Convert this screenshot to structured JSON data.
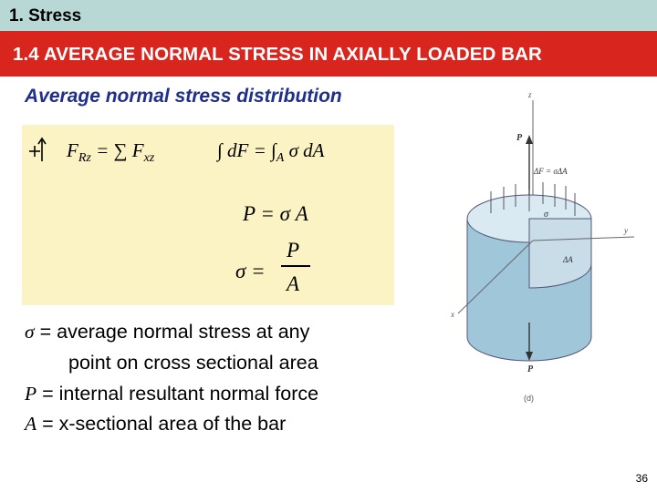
{
  "header": {
    "chapter": "1. Stress",
    "section": "1.4 AVERAGE NORMAL STRESS IN AXIALLY LOADED BAR"
  },
  "subtitle": "Average normal stress distribution",
  "equations": {
    "force_sum": "F",
    "force_sum_sub": "Rz",
    "force_sum_rhs": "= ∑ F",
    "force_sum_rhs_sub": "xz",
    "integral_lhs": "∫ dF = ∫",
    "integral_sub": "A",
    "integral_rhs": " σ dA",
    "p_eq": "P = σ A",
    "sigma_lhs": "σ =",
    "frac_num": "P",
    "frac_den": "A"
  },
  "definitions": {
    "sigma_sym": "σ",
    "sigma_text": " = average normal stress at any",
    "sigma_text2": "point on cross sectional area",
    "p_sym": "P",
    "p_text": " = internal resultant normal force",
    "a_sym": "A",
    "a_text": " = x-sectional area of the bar"
  },
  "figure": {
    "z_label": "z",
    "p_top": "P",
    "df_label": "ΔF = σΔA",
    "sigma_label": "σ",
    "y_label": "y",
    "da_label": "ΔA",
    "x_label": "x",
    "p_bottom": "P",
    "caption": "(d)"
  },
  "page_number": "36",
  "colors": {
    "top_bar": "#b8d8d6",
    "title_bar": "#d8261f",
    "subtitle": "#1f2f8c",
    "equation_box": "#fcf3c4"
  }
}
